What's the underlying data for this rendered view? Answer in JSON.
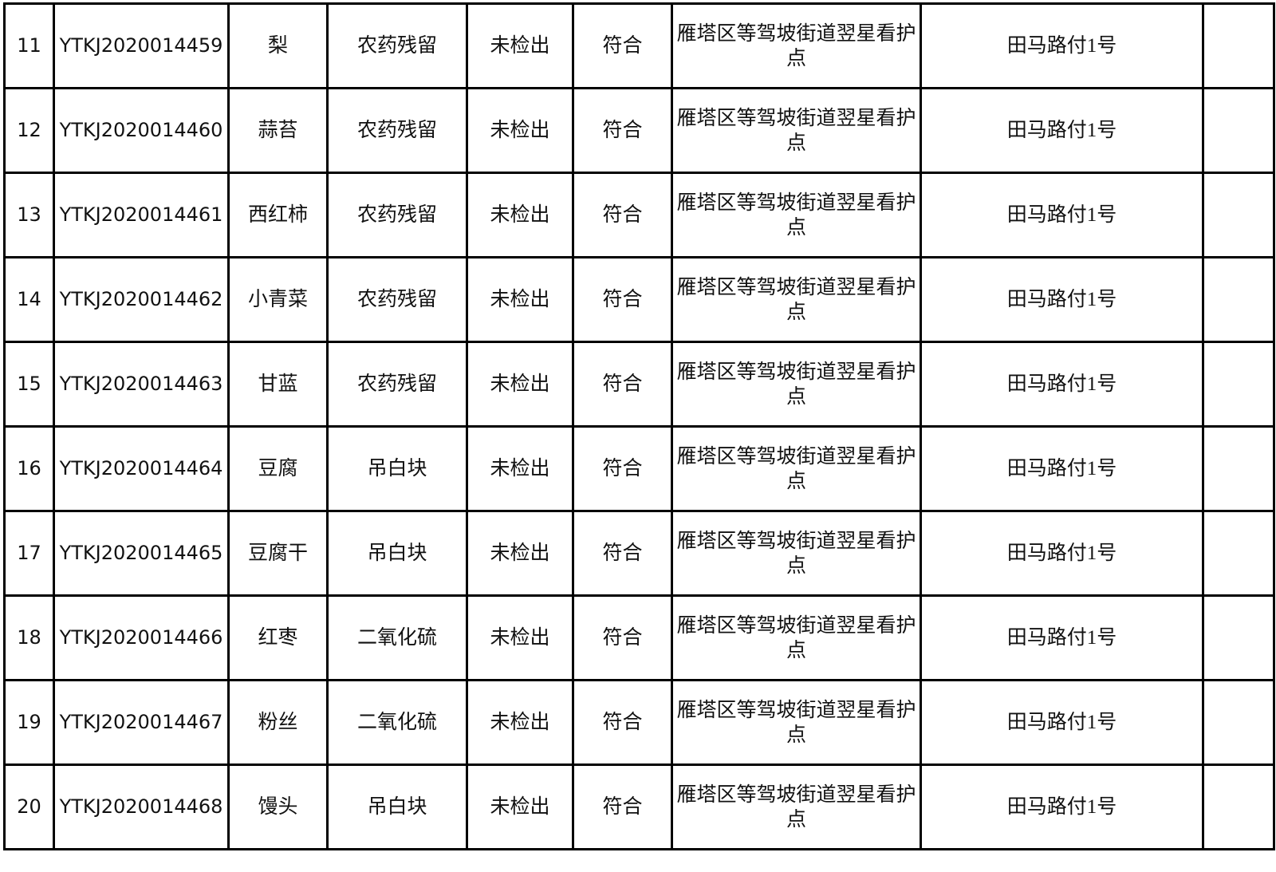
{
  "table": {
    "rows": [
      {
        "no": "11",
        "code": "YTKJ2020014459",
        "sample": "梨",
        "item": "农药残留",
        "result": "未检出",
        "verdict": "符合",
        "location": "雁塔区等驾坡街道翌星看护点",
        "address": "田马路付1号",
        "remark": ""
      },
      {
        "no": "12",
        "code": "YTKJ2020014460",
        "sample": "蒜苔",
        "item": "农药残留",
        "result": "未检出",
        "verdict": "符合",
        "location": "雁塔区等驾坡街道翌星看护点",
        "address": "田马路付1号",
        "remark": ""
      },
      {
        "no": "13",
        "code": "YTKJ2020014461",
        "sample": "西红柿",
        "item": "农药残留",
        "result": "未检出",
        "verdict": "符合",
        "location": "雁塔区等驾坡街道翌星看护点",
        "address": "田马路付1号",
        "remark": ""
      },
      {
        "no": "14",
        "code": "YTKJ2020014462",
        "sample": "小青菜",
        "item": "农药残留",
        "result": "未检出",
        "verdict": "符合",
        "location": "雁塔区等驾坡街道翌星看护点",
        "address": "田马路付1号",
        "remark": ""
      },
      {
        "no": "15",
        "code": "YTKJ2020014463",
        "sample": "甘蓝",
        "item": "农药残留",
        "result": "未检出",
        "verdict": "符合",
        "location": "雁塔区等驾坡街道翌星看护点",
        "address": "田马路付1号",
        "remark": ""
      },
      {
        "no": "16",
        "code": "YTKJ2020014464",
        "sample": "豆腐",
        "item": "吊白块",
        "result": "未检出",
        "verdict": "符合",
        "location": "雁塔区等驾坡街道翌星看护点",
        "address": "田马路付1号",
        "remark": ""
      },
      {
        "no": "17",
        "code": "YTKJ2020014465",
        "sample": "豆腐干",
        "item": "吊白块",
        "result": "未检出",
        "verdict": "符合",
        "location": "雁塔区等驾坡街道翌星看护点",
        "address": "田马路付1号",
        "remark": ""
      },
      {
        "no": "18",
        "code": "YTKJ2020014466",
        "sample": "红枣",
        "item": "二氧化硫",
        "result": "未检出",
        "verdict": "符合",
        "location": "雁塔区等驾坡街道翌星看护点",
        "address": "田马路付1号",
        "remark": ""
      },
      {
        "no": "19",
        "code": "YTKJ2020014467",
        "sample": "粉丝",
        "item": "二氧化硫",
        "result": "未检出",
        "verdict": "符合",
        "location": "雁塔区等驾坡街道翌星看护点",
        "address": "田马路付1号",
        "remark": ""
      },
      {
        "no": "20",
        "code": "YTKJ2020014468",
        "sample": "馒头",
        "item": "吊白块",
        "result": "未检出",
        "verdict": "符合",
        "location": "雁塔区等驾坡街道翌星看护点",
        "address": "田马路付1号",
        "remark": ""
      }
    ]
  }
}
